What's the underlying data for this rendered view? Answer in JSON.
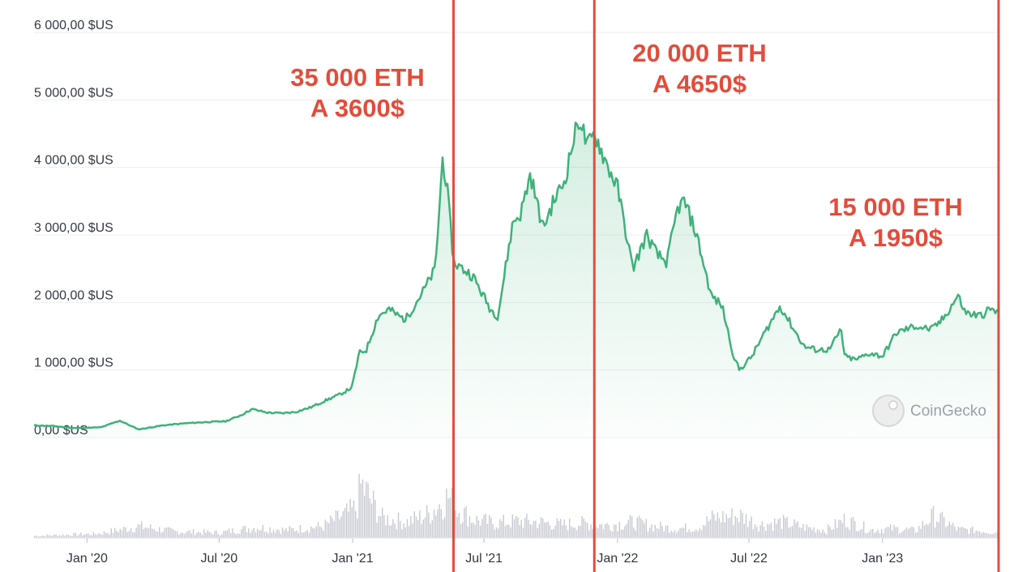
{
  "chart_data": {
    "type": "line",
    "y_ticks": [
      "0,00 $US",
      "1 000,00 $US",
      "2 000,00 $US",
      "3 000,00 $US",
      "4 000,00 $US",
      "5 000,00 $US",
      "6 000,00 $US"
    ],
    "y_tick_values": [
      0,
      1000,
      2000,
      3000,
      4000,
      5000,
      6000
    ],
    "ylim": [
      0,
      6000
    ],
    "x_ticks": [
      "Jan '20",
      "Jul '20",
      "Jan '21",
      "Jul '21",
      "Jan '22",
      "Jul '22",
      "Jan '23"
    ],
    "x_tick_dates": [
      "2020-01-01",
      "2020-07-01",
      "2021-01-01",
      "2021-07-01",
      "2022-01-01",
      "2022-07-01",
      "2023-01-01"
    ],
    "x_range": [
      "2019-10-20",
      "2023-06-10"
    ],
    "grid": true,
    "series": [
      {
        "color": "#3fb17a",
        "x": [
          "2019-10-20",
          "2019-11-15",
          "2019-12-15",
          "2020-01-20",
          "2020-02-15",
          "2020-03-12",
          "2020-04-15",
          "2020-05-15",
          "2020-06-15",
          "2020-07-10",
          "2020-07-31",
          "2020-08-15",
          "2020-09-05",
          "2020-09-25",
          "2020-10-15",
          "2020-11-05",
          "2020-11-25",
          "2020-12-15",
          "2020-12-31",
          "2021-01-10",
          "2021-01-20",
          "2021-02-05",
          "2021-02-20",
          "2021-03-05",
          "2021-03-15",
          "2021-04-10",
          "2021-04-25",
          "2021-05-05",
          "2021-05-12",
          "2021-05-20",
          "2021-06-01",
          "2021-06-15",
          "2021-06-25",
          "2021-07-10",
          "2021-07-20",
          "2021-08-10",
          "2021-08-20",
          "2021-09-03",
          "2021-09-20",
          "2021-10-05",
          "2021-10-20",
          "2021-11-01",
          "2021-11-10",
          "2021-11-20",
          "2021-12-01",
          "2021-12-15",
          "2022-01-01",
          "2022-01-22",
          "2022-02-10",
          "2022-02-25",
          "2022-03-10",
          "2022-03-25",
          "2022-04-03",
          "2022-04-20",
          "2022-05-10",
          "2022-05-25",
          "2022-06-10",
          "2022-06-18",
          "2022-07-05",
          "2022-07-20",
          "2022-08-13",
          "2022-09-01",
          "2022-09-15",
          "2022-10-01",
          "2022-10-20",
          "2022-11-05",
          "2022-11-10",
          "2022-11-25",
          "2022-12-15",
          "2023-01-01",
          "2023-01-20",
          "2023-02-15",
          "2023-03-10",
          "2023-03-25",
          "2023-04-15",
          "2023-04-25",
          "2023-05-15",
          "2023-05-30",
          "2023-06-10"
        ],
        "values": [
          180,
          170,
          140,
          150,
          250,
          120,
          180,
          210,
          230,
          240,
          330,
          420,
          370,
          360,
          380,
          450,
          550,
          640,
          740,
          1250,
          1300,
          1800,
          1900,
          1800,
          1750,
          2200,
          2500,
          4150,
          3600,
          2600,
          2500,
          2400,
          2200,
          1900,
          1800,
          3200,
          3300,
          3900,
          3100,
          3500,
          3800,
          4400,
          4750,
          4300,
          4500,
          4100,
          3700,
          2500,
          3000,
          2700,
          2600,
          3400,
          3500,
          3000,
          2100,
          1950,
          1200,
          1000,
          1200,
          1500,
          1950,
          1600,
          1350,
          1300,
          1300,
          1600,
          1200,
          1150,
          1250,
          1200,
          1550,
          1650,
          1600,
          1750,
          2100,
          1850,
          1800,
          1900,
          1850
        ]
      }
    ],
    "volume": {
      "color": "#c7c9d1",
      "x": [
        "2019-10-20",
        "2019-12-01",
        "2020-01-15",
        "2020-03-12",
        "2020-05-01",
        "2020-07-01",
        "2020-08-20",
        "2020-10-01",
        "2020-11-20",
        "2021-01-05",
        "2021-01-12",
        "2021-02-10",
        "2021-03-15",
        "2021-04-15",
        "2021-05-12",
        "2021-05-20",
        "2021-06-15",
        "2021-07-15",
        "2021-08-15",
        "2021-09-15",
        "2021-10-15",
        "2021-11-15",
        "2021-12-15",
        "2022-01-22",
        "2022-02-20",
        "2022-03-20",
        "2022-04-20",
        "2022-05-12",
        "2022-06-18",
        "2022-07-15",
        "2022-08-15",
        "2022-09-15",
        "2022-10-15",
        "2022-11-10",
        "2022-12-15",
        "2023-01-15",
        "2023-02-15",
        "2023-03-12",
        "2023-04-15",
        "2023-05-15",
        "2023-06-10"
      ],
      "values": [
        0.04,
        0.06,
        0.08,
        0.22,
        0.12,
        0.1,
        0.2,
        0.15,
        0.22,
        0.55,
        1.0,
        0.38,
        0.3,
        0.45,
        0.78,
        0.6,
        0.35,
        0.28,
        0.32,
        0.3,
        0.25,
        0.28,
        0.24,
        0.3,
        0.22,
        0.18,
        0.2,
        0.38,
        0.42,
        0.25,
        0.3,
        0.2,
        0.15,
        0.35,
        0.15,
        0.18,
        0.14,
        0.42,
        0.16,
        0.14,
        0.1
      ]
    }
  },
  "annotations": [
    {
      "line1": "35 000 ETH",
      "line2": "A 3600$",
      "line_date": "2021-05-20",
      "color": "#e34c3a"
    },
    {
      "line1": "20 000 ETH",
      "line2": "A 4650$",
      "line_date": "2021-11-30",
      "color": "#e34c3a"
    },
    {
      "line1": "15 000 ETH",
      "line2": "A 1950$",
      "line_date": "2023-06-10",
      "color": "#e34c3a"
    }
  ],
  "watermark": {
    "text": "CoinGecko",
    "icon": "gecko-logo-icon"
  }
}
